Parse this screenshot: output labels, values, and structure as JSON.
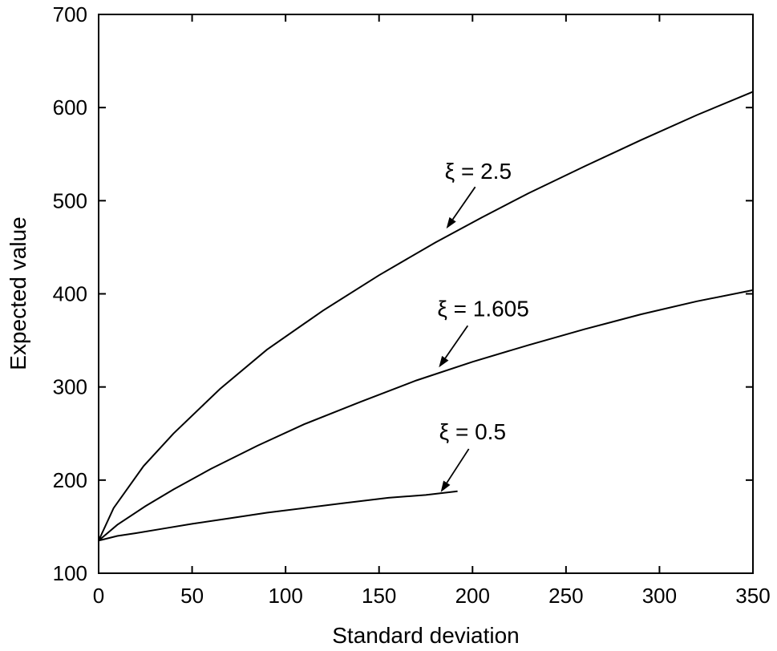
{
  "chart_data": {
    "type": "line",
    "xlabel": "Standard deviation",
    "ylabel": "Expected value",
    "xlim": [
      0,
      350
    ],
    "ylim": [
      100,
      700
    ],
    "xticks": [
      0,
      50,
      100,
      150,
      200,
      250,
      300,
      350
    ],
    "yticks": [
      100,
      200,
      300,
      400,
      500,
      600,
      700
    ],
    "grid": false,
    "series": [
      {
        "name": "ξ = 2.5",
        "x": [
          0,
          8,
          24,
          40,
          65,
          90,
          120,
          150,
          180,
          205,
          230,
          260,
          290,
          320,
          350
        ],
        "y": [
          135,
          170,
          215,
          250,
          298,
          340,
          382,
          420,
          455,
          482,
          508,
          537,
          565,
          592,
          617
        ]
      },
      {
        "name": "ξ = 1.605",
        "x": [
          0,
          10,
          25,
          40,
          60,
          85,
          110,
          140,
          170,
          200,
          230,
          260,
          290,
          320,
          350
        ],
        "y": [
          135,
          152,
          172,
          190,
          212,
          237,
          260,
          284,
          307,
          327,
          345,
          362,
          378,
          392,
          404
        ]
      },
      {
        "name": "ξ = 0.5",
        "x": [
          0,
          10,
          20,
          35,
          50,
          70,
          90,
          110,
          130,
          155,
          175,
          192
        ],
        "y": [
          135,
          140,
          143,
          148,
          153,
          159,
          165,
          170,
          175,
          181,
          184,
          188
        ]
      }
    ],
    "annotations": [
      {
        "text": "ξ = 2.5",
        "series": 0,
        "target": [
          186,
          470
        ]
      },
      {
        "text": "ξ = 1.605",
        "series": 1,
        "target": [
          182,
          321
        ]
      },
      {
        "text": "ξ = 0.5",
        "series": 2,
        "target": [
          183,
          187
        ]
      }
    ]
  }
}
